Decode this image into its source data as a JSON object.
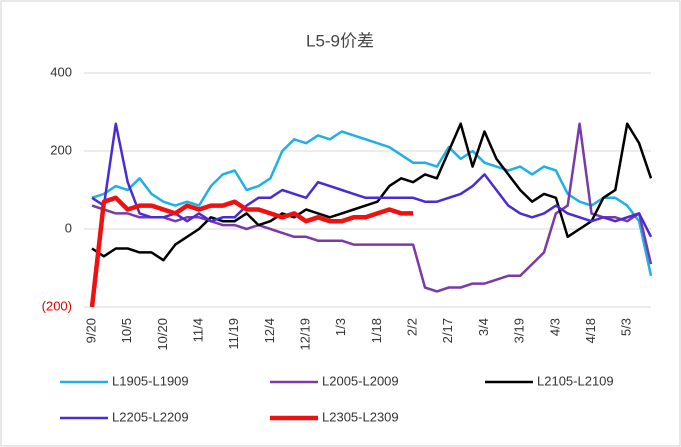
{
  "chart_data": {
    "type": "line",
    "title": "L5-9价差",
    "categories": [
      "9/20",
      null,
      null,
      "10/5",
      null,
      null,
      "10/20",
      null,
      null,
      "11/4",
      null,
      null,
      "11/19",
      null,
      null,
      "12/4",
      null,
      null,
      "12/19",
      null,
      null,
      "1/3",
      null,
      null,
      "1/18",
      null,
      null,
      "2/2",
      null,
      null,
      "2/17",
      null,
      null,
      "3/4",
      null,
      null,
      "3/19",
      null,
      null,
      "4/3",
      null,
      null,
      "4/18",
      null,
      null,
      "5/3",
      null,
      null
    ],
    "ylim": [
      -200,
      400
    ],
    "yticks": [
      {
        "value": -200,
        "label": "(200)"
      },
      0,
      200,
      400
    ],
    "negative_label_color": "#e00000",
    "grid": true,
    "legend": "bottom",
    "series": [
      {
        "name": "L1905-L1909",
        "color": "#1fb0e6",
        "width": 2.5,
        "values": [
          80,
          90,
          110,
          100,
          130,
          90,
          70,
          60,
          70,
          60,
          110,
          140,
          150,
          100,
          110,
          130,
          200,
          230,
          220,
          240,
          230,
          250,
          240,
          230,
          220,
          210,
          190,
          170,
          170,
          160,
          210,
          180,
          200,
          170,
          160,
          150,
          160,
          140,
          160,
          150,
          90,
          70,
          60,
          80,
          80,
          60,
          20,
          -120
        ]
      },
      {
        "name": "L2005-L2009",
        "color": "#7a3aa8",
        "width": 2.5,
        "values": [
          60,
          50,
          40,
          40,
          30,
          30,
          30,
          20,
          30,
          30,
          20,
          10,
          10,
          0,
          10,
          0,
          -10,
          -20,
          -20,
          -30,
          -30,
          -30,
          -40,
          -40,
          -40,
          -40,
          -40,
          -40,
          -150,
          -160,
          -150,
          -150,
          -140,
          -140,
          -130,
          -120,
          -120,
          -90,
          -60,
          40,
          60,
          270,
          40,
          30,
          30,
          20,
          40,
          -90
        ]
      },
      {
        "name": "L2105-L2109",
        "color": "#000000",
        "width": 2.5,
        "values": [
          -50,
          -70,
          -50,
          -50,
          -60,
          -60,
          -80,
          -40,
          -20,
          0,
          30,
          20,
          20,
          40,
          10,
          20,
          40,
          30,
          50,
          40,
          30,
          40,
          50,
          60,
          70,
          110,
          130,
          120,
          140,
          130,
          200,
          270,
          160,
          250,
          180,
          140,
          100,
          70,
          90,
          80,
          -20,
          0,
          20,
          80,
          100,
          270,
          220,
          130
        ]
      },
      {
        "name": "L2205-L2209",
        "color": "#4b2bd6",
        "width": 2.5,
        "values": [
          80,
          60,
          270,
          120,
          40,
          30,
          30,
          40,
          20,
          40,
          20,
          30,
          30,
          60,
          80,
          80,
          100,
          90,
          80,
          120,
          110,
          100,
          90,
          80,
          80,
          80,
          80,
          80,
          70,
          70,
          80,
          90,
          110,
          140,
          100,
          60,
          40,
          30,
          40,
          60,
          40,
          30,
          20,
          30,
          20,
          30,
          40,
          -20
        ]
      },
      {
        "name": "L2305-L2309",
        "color": "#f01010",
        "width": 4.5,
        "values": [
          -200,
          70,
          80,
          50,
          60,
          60,
          50,
          40,
          60,
          50,
          60,
          60,
          70,
          50,
          50,
          40,
          30,
          40,
          20,
          30,
          20,
          20,
          30,
          30,
          40,
          50,
          40,
          40,
          null,
          null,
          null,
          null,
          null,
          null,
          null,
          null,
          null,
          null,
          null,
          null,
          null,
          null,
          null,
          null,
          null,
          null,
          null,
          null
        ]
      }
    ]
  }
}
